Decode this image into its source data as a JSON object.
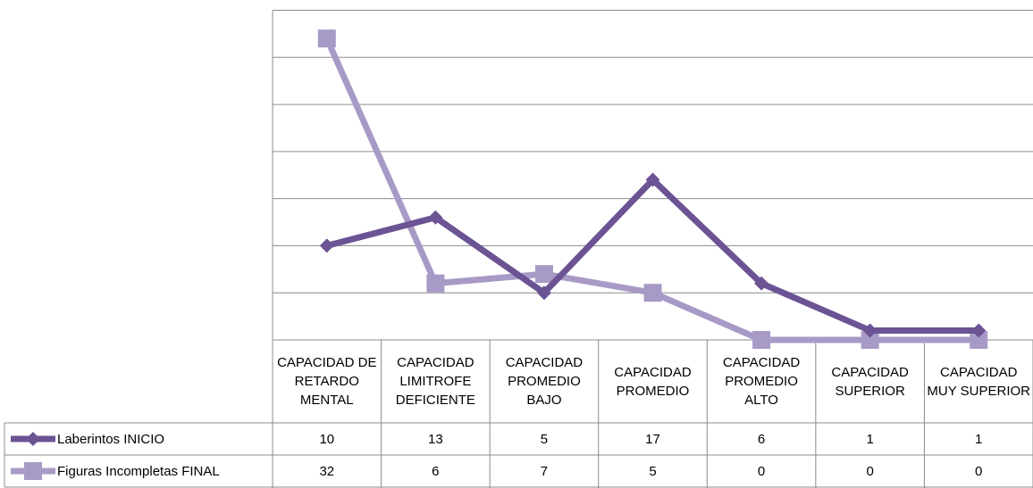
{
  "chart_data": {
    "type": "line",
    "categories": [
      "CAPACIDAD DE RETARDO MENTAL",
      "CAPACIDAD LIMITROFE DEFICIENTE",
      "CAPACIDAD PROMEDIO BAJO",
      "CAPACIDAD PROMEDIO",
      "CAPACIDAD PROMEDIO ALTO",
      "CAPACIDAD SUPERIOR",
      "CAPACIDAD MUY SUPERIOR"
    ],
    "series": [
      {
        "name": "Laberintos INICIO",
        "color": "#6b5394",
        "marker": "diamond",
        "values": [
          10,
          13,
          5,
          17,
          6,
          1,
          1
        ]
      },
      {
        "name": "Figuras Incompletas FINAL",
        "color": "#a89ac6",
        "marker": "square",
        "values": [
          32,
          6,
          7,
          5,
          0,
          0,
          0
        ]
      }
    ],
    "ylim": [
      0,
      35
    ],
    "yticks": [
      0,
      5,
      10,
      15,
      20,
      25,
      30,
      35
    ],
    "grid": true
  }
}
